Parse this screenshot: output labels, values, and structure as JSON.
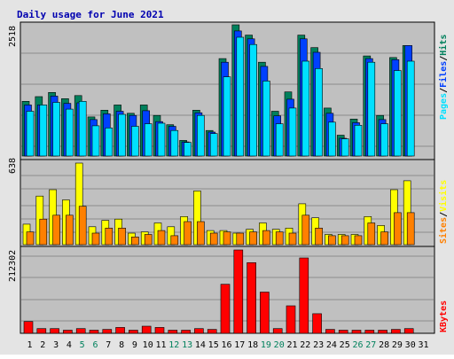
{
  "colors": {
    "background": "#e4e4e4",
    "panel": "#c0c0c0",
    "title": "#0000b0",
    "hits": "#00805c",
    "files": "#0040ff",
    "pages": "#00e0ff",
    "visits": "#ffff00",
    "sites": "#ff8000",
    "kbytes": "#ff0000"
  },
  "chart_data": [
    {
      "type": "bar",
      "title": "Daily usage for June 2021",
      "categories": [
        "1",
        "2",
        "3",
        "4",
        "5",
        "6",
        "7",
        "8",
        "9",
        "10",
        "11",
        "12",
        "13",
        "14",
        "15",
        "16",
        "17",
        "18",
        "19",
        "20",
        "21",
        "22",
        "23",
        "24",
        "25",
        "26",
        "27",
        "28",
        "29",
        "30",
        "31"
      ],
      "weekend_days": [
        "5",
        "6",
        "12",
        "13",
        "19",
        "20",
        "26",
        "27"
      ],
      "ymax_label": "2518",
      "ylim": [
        0,
        2518
      ],
      "legend": [
        "Pages",
        "Files",
        "Hits"
      ],
      "series": [
        {
          "name": "Hits",
          "values": [
            1050,
            1140,
            1220,
            1100,
            1160,
            750,
            880,
            980,
            820,
            980,
            780,
            600,
            300,
            880,
            490,
            1870,
            2518,
            2320,
            1800,
            860,
            1230,
            2320,
            2080,
            920,
            400,
            710,
            1920,
            780,
            1890,
            2120,
            0
          ]
        },
        {
          "name": "Files",
          "values": [
            980,
            980,
            1150,
            1010,
            1020,
            700,
            810,
            860,
            780,
            870,
            660,
            570,
            270,
            830,
            460,
            1800,
            2400,
            2250,
            1720,
            770,
            1090,
            2250,
            1990,
            820,
            340,
            640,
            1870,
            700,
            1850,
            2120,
            0
          ]
        },
        {
          "name": "Pages",
          "values": [
            860,
            980,
            1030,
            900,
            1050,
            580,
            540,
            800,
            570,
            620,
            630,
            490,
            260,
            780,
            430,
            1520,
            2280,
            2140,
            1440,
            620,
            920,
            1820,
            1680,
            650,
            330,
            590,
            1800,
            620,
            1640,
            1820,
            0
          ]
        }
      ]
    },
    {
      "type": "bar",
      "ymax_label": "638",
      "ylim": [
        0,
        638
      ],
      "legend": [
        "Sites",
        "Visits"
      ],
      "series": [
        {
          "name": "Visits",
          "values": [
            160,
            380,
            430,
            350,
            638,
            140,
            190,
            200,
            90,
            100,
            170,
            140,
            220,
            420,
            110,
            110,
            90,
            120,
            170,
            120,
            130,
            320,
            210,
            80,
            80,
            80,
            220,
            150,
            430,
            500,
            0
          ]
        },
        {
          "name": "Sites",
          "values": [
            100,
            200,
            230,
            230,
            300,
            90,
            130,
            130,
            60,
            80,
            110,
            70,
            180,
            180,
            90,
            100,
            90,
            100,
            110,
            100,
            90,
            230,
            130,
            70,
            70,
            70,
            170,
            100,
            250,
            250,
            0
          ]
        }
      ]
    },
    {
      "type": "bar",
      "ymax_label": "212302",
      "ylim": [
        0,
        212302
      ],
      "legend": [
        "KBytes"
      ],
      "series": [
        {
          "name": "KBytes",
          "values": [
            30000,
            12000,
            12000,
            8000,
            12000,
            8000,
            10000,
            15000,
            8000,
            18000,
            15000,
            8000,
            8000,
            12000,
            10000,
            125000,
            212302,
            180000,
            105000,
            12000,
            70000,
            192000,
            50000,
            10000,
            8000,
            8000,
            8000,
            8000,
            10000,
            12000,
            0
          ]
        }
      ]
    }
  ]
}
